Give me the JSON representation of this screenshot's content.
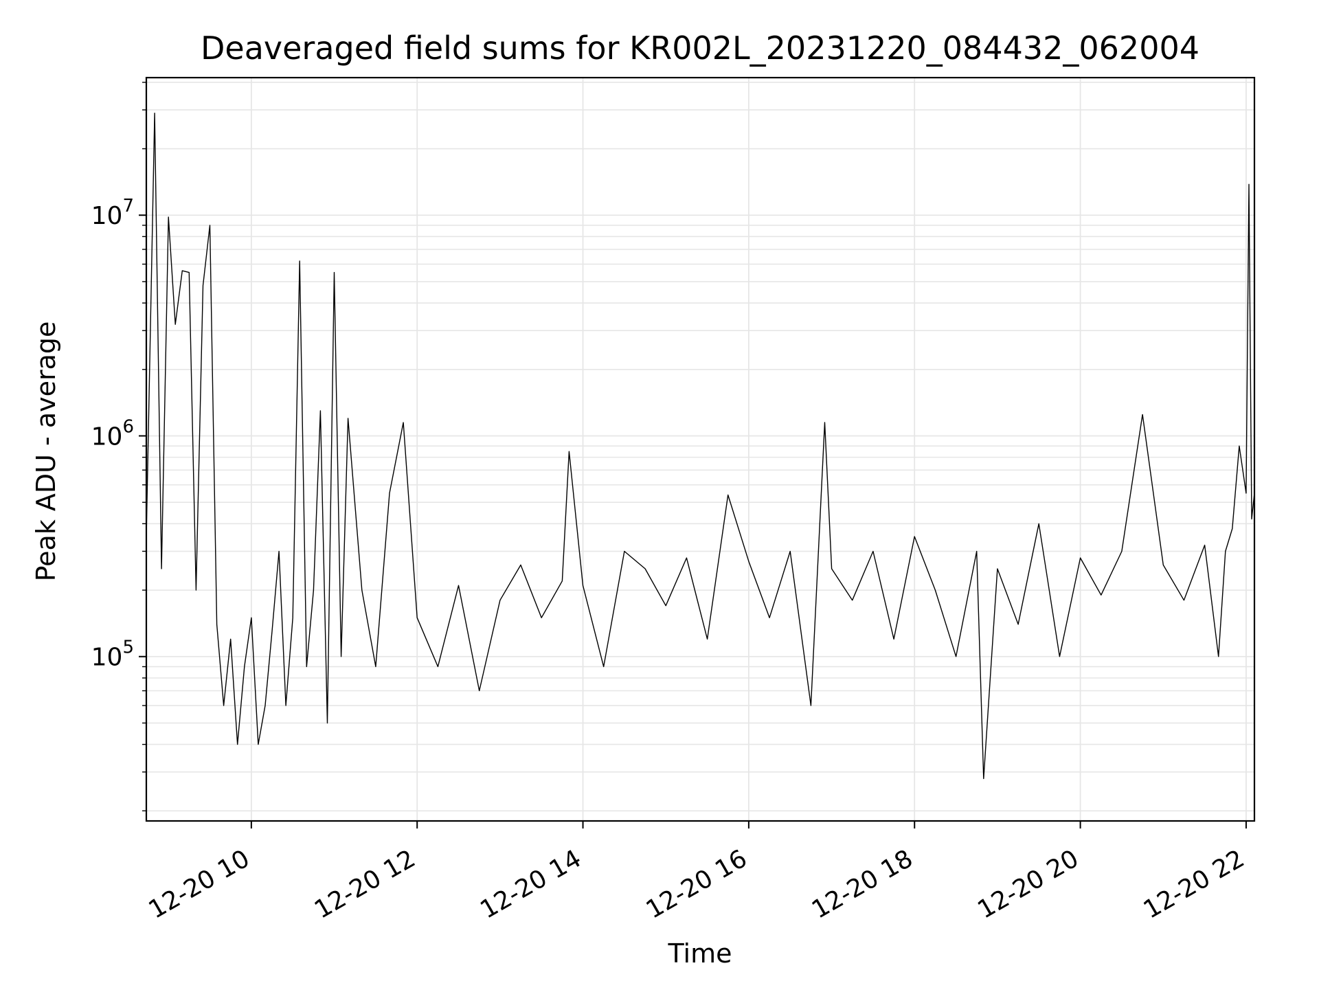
{
  "chart_data": {
    "type": "line",
    "title": "Deaveraged field sums for KR002L_20231220_084432_062004",
    "xlabel": "Time",
    "ylabel": "Peak ADU - average",
    "x_scale": "time",
    "y_scale": "log",
    "xlim": [
      "2023-12-20 08:44",
      "2023-12-20 22:06"
    ],
    "ylim": [
      18000,
      42000000
    ],
    "grid": true,
    "line_color": "#000000",
    "grid_color": "#e6e6e6",
    "x_ticks": [
      {
        "value": "2023-12-20 10:00",
        "label": "12-20 10"
      },
      {
        "value": "2023-12-20 12:00",
        "label": "12-20 12"
      },
      {
        "value": "2023-12-20 14:00",
        "label": "12-20 14"
      },
      {
        "value": "2023-12-20 16:00",
        "label": "12-20 16"
      },
      {
        "value": "2023-12-20 18:00",
        "label": "12-20 18"
      },
      {
        "value": "2023-12-20 20:00",
        "label": "12-20 20"
      },
      {
        "value": "2023-12-20 22:00",
        "label": "12-20 22"
      }
    ],
    "y_ticks": [
      {
        "value": 100000,
        "base": "10",
        "exp": "5"
      },
      {
        "value": 1000000,
        "base": "10",
        "exp": "6"
      },
      {
        "value": 10000000,
        "base": "10",
        "exp": "7"
      }
    ],
    "series": [
      {
        "x": [
          "2023-12-20 08:44",
          "2023-12-20 08:50",
          "2023-12-20 08:55",
          "2023-12-20 09:00",
          "2023-12-20 09:05",
          "2023-12-20 09:10",
          "2023-12-20 09:15",
          "2023-12-20 09:20",
          "2023-12-20 09:25",
          "2023-12-20 09:30",
          "2023-12-20 09:35",
          "2023-12-20 09:40",
          "2023-12-20 09:45",
          "2023-12-20 09:50",
          "2023-12-20 09:55",
          "2023-12-20 10:00",
          "2023-12-20 10:05",
          "2023-12-20 10:10",
          "2023-12-20 10:15",
          "2023-12-20 10:20",
          "2023-12-20 10:25",
          "2023-12-20 10:30",
          "2023-12-20 10:35",
          "2023-12-20 10:40",
          "2023-12-20 10:45",
          "2023-12-20 10:50",
          "2023-12-20 10:55",
          "2023-12-20 11:00",
          "2023-12-20 11:05",
          "2023-12-20 11:10",
          "2023-12-20 11:20",
          "2023-12-20 11:30",
          "2023-12-20 11:40",
          "2023-12-20 11:50",
          "2023-12-20 12:00",
          "2023-12-20 12:15",
          "2023-12-20 12:30",
          "2023-12-20 12:45",
          "2023-12-20 13:00",
          "2023-12-20 13:15",
          "2023-12-20 13:30",
          "2023-12-20 13:45",
          "2023-12-20 13:50",
          "2023-12-20 14:00",
          "2023-12-20 14:15",
          "2023-12-20 14:30",
          "2023-12-20 14:45",
          "2023-12-20 15:00",
          "2023-12-20 15:15",
          "2023-12-20 15:30",
          "2023-12-20 15:45",
          "2023-12-20 16:00",
          "2023-12-20 16:15",
          "2023-12-20 16:30",
          "2023-12-20 16:45",
          "2023-12-20 16:55",
          "2023-12-20 17:00",
          "2023-12-20 17:15",
          "2023-12-20 17:30",
          "2023-12-20 17:45",
          "2023-12-20 18:00",
          "2023-12-20 18:15",
          "2023-12-20 18:30",
          "2023-12-20 18:45",
          "2023-12-20 18:50",
          "2023-12-20 19:00",
          "2023-12-20 19:15",
          "2023-12-20 19:30",
          "2023-12-20 19:45",
          "2023-12-20 20:00",
          "2023-12-20 20:15",
          "2023-12-20 20:30",
          "2023-12-20 20:45",
          "2023-12-20 21:00",
          "2023-12-20 21:15",
          "2023-12-20 21:30",
          "2023-12-20 21:40",
          "2023-12-20 21:45",
          "2023-12-20 21:50",
          "2023-12-20 21:55",
          "2023-12-20 22:00",
          "2023-12-20 22:02",
          "2023-12-20 22:04",
          "2023-12-20 22:06"
        ],
        "y": [
          350000,
          29000000,
          250000,
          9800000,
          3200000,
          5600000,
          5500000,
          200000,
          4800000,
          9000000,
          140000,
          60000,
          120000,
          40000,
          90000,
          150000,
          40000,
          60000,
          130000,
          300000,
          60000,
          150000,
          6200000,
          90000,
          200000,
          1300000,
          50000,
          5500000,
          100000,
          1200000,
          200000,
          90000,
          550000,
          1150000,
          150000,
          90000,
          210000,
          70000,
          180000,
          260000,
          150000,
          220000,
          850000,
          210000,
          90000,
          300000,
          250000,
          170000,
          280000,
          120000,
          540000,
          270000,
          150000,
          300000,
          60000,
          1150000,
          250000,
          180000,
          300000,
          120000,
          350000,
          200000,
          100000,
          300000,
          28000,
          250000,
          140000,
          400000,
          100000,
          280000,
          190000,
          300000,
          1250000,
          260000,
          180000,
          320000,
          100000,
          300000,
          380000,
          900000,
          550000,
          13800000,
          420000,
          550000
        ]
      }
    ]
  }
}
